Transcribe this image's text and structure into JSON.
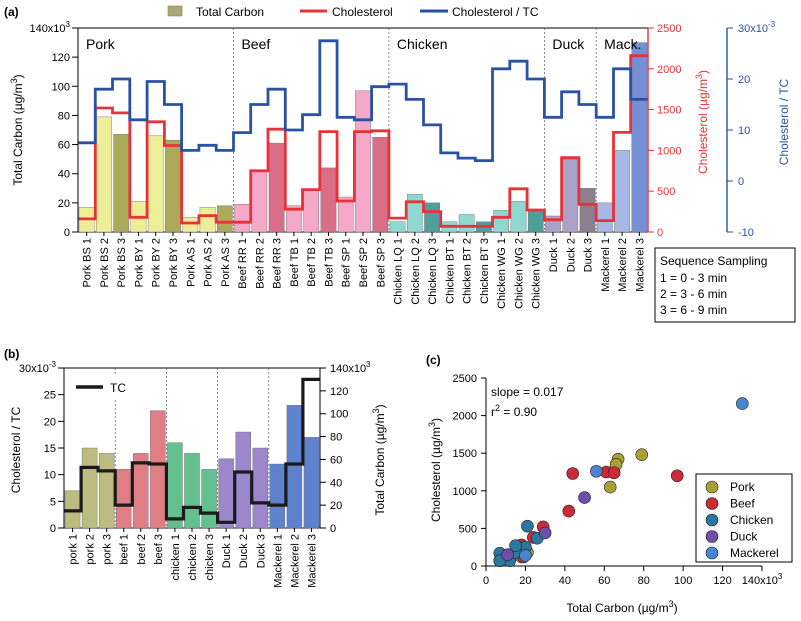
{
  "chart_data": [
    {
      "panel": "(a)",
      "type": "bar",
      "legend": {
        "total_carbon": "Total Carbon",
        "cholesterol": "Cholesterol",
        "ratio": "Cholesterol / TC"
      },
      "groups": [
        "Pork",
        "Beef",
        "Chicken",
        "Duck",
        "Mack."
      ],
      "categories": [
        "Pork BS 1",
        "Pork BS 2",
        "Pork BS 3",
        "Pork BY 1",
        "Pork BY 2",
        "Pork BY 3",
        "Pork AS 1",
        "Pork AS 2",
        "Pork AS 3",
        "Beef RR 1",
        "Beef RR 2",
        "Beef RR 3",
        "Beef TB 1",
        "Beef TB 2",
        "Beef TB 3",
        "Beef SP 1",
        "Beef SP 2",
        "Beef SP 3",
        "Chicken LQ 1",
        "Chicken LQ 2",
        "Chicken LQ 3",
        "Chicken BT 1",
        "Chicken BT 2",
        "Chicken BT 3",
        "Chicken WG 1",
        "Chicken WG 2",
        "Chicken WG 3",
        "Duck 1",
        "Duck 2",
        "Duck 3",
        "Mackerel 1",
        "Mackerel 2",
        "Mackerel 3"
      ],
      "group_of": [
        0,
        0,
        0,
        0,
        0,
        0,
        0,
        0,
        0,
        1,
        1,
        1,
        1,
        1,
        1,
        1,
        1,
        1,
        2,
        2,
        2,
        2,
        2,
        2,
        2,
        2,
        2,
        3,
        3,
        3,
        4,
        4,
        4
      ],
      "series": [
        {
          "name": "Total Carbon",
          "axis": "left",
          "values": [
            17,
            79,
            67,
            21,
            66,
            63,
            10,
            17,
            18,
            19,
            42,
            61,
            18,
            29,
            44,
            24,
            97,
            65,
            7,
            26,
            20,
            7,
            12,
            7,
            15,
            21,
            15,
            11,
            50,
            30,
            20,
            56,
            130
          ]
        },
        {
          "name": "Cholesterol",
          "axis": "right",
          "values": [
            160,
            1520,
            1460,
            180,
            1350,
            1060,
            110,
            200,
            120,
            120,
            750,
            1260,
            280,
            520,
            1230,
            380,
            1230,
            1240,
            170,
            370,
            250,
            70,
            70,
            70,
            180,
            530,
            270,
            150,
            910,
            340,
            140,
            1220,
            2160
          ]
        },
        {
          "name": "Cholesterol / TC",
          "axis": "right2",
          "values": [
            7.5,
            18,
            20,
            12,
            19.5,
            15,
            6,
            7,
            6,
            9.5,
            15,
            18,
            10,
            13,
            27.5,
            12.5,
            12,
            18.5,
            19,
            16,
            11,
            5.5,
            4.5,
            4,
            22,
            23.5,
            20,
            12.5,
            17.5,
            15,
            12.5,
            22,
            16
          ]
        }
      ],
      "y_left": {
        "label": "Total Carbon (µg/m",
        "sup": "3",
        "label_end": ")",
        "ticks": [
          "0",
          "20",
          "40",
          "60",
          "80",
          "100",
          "120",
          "140x10"
        ],
        "tick_exp": "3",
        "range": [
          0,
          140
        ]
      },
      "y_right": {
        "label": "Cholesterol (µg/m",
        "sup": "3",
        "label_end": ")",
        "ticks": [
          "0",
          "500",
          "1000",
          "1500",
          "2000",
          "2500"
        ],
        "range": [
          0,
          2500
        ]
      },
      "y_right2": {
        "label": "Cholesterol / TC",
        "ticks": [
          "-10",
          "0",
          "10",
          "20",
          "30x10"
        ],
        "tick_exp": "-3",
        "range": [
          -10,
          30
        ]
      },
      "sequence_box": {
        "title": "Sequence Sampling",
        "lines": [
          "1 = 0 - 3 min",
          "2 = 3 - 6 min",
          "3 = 6 - 9 min"
        ]
      }
    },
    {
      "panel": "(b)",
      "type": "bar",
      "legend": {
        "tc": "TC"
      },
      "categories": [
        "pork 1",
        "pork 2",
        "pork 3",
        "beef 1",
        "beef 2",
        "beef 3",
        "chicken 1",
        "chicken 2",
        "chicken 3",
        "Duck 1",
        "Duck 2",
        "Duck 3",
        "Mackerel 1",
        "Mackerel 2",
        "Mackerel 3"
      ],
      "group_of": [
        0,
        0,
        0,
        1,
        1,
        1,
        2,
        2,
        2,
        3,
        3,
        3,
        4,
        4,
        4
      ],
      "series": [
        {
          "name": "Cholesterol / TC",
          "axis": "left",
          "values": [
            7,
            15,
            14,
            11,
            14,
            22,
            16,
            14,
            11,
            13,
            18,
            15,
            12,
            23,
            17
          ]
        },
        {
          "name": "TC",
          "axis": "right",
          "values": [
            15,
            53,
            50,
            20,
            57,
            56,
            8,
            18,
            13,
            5,
            49,
            22,
            20,
            56,
            130
          ]
        }
      ],
      "y_left": {
        "label": "Cholesterol / TC",
        "ticks": [
          "0",
          "5",
          "10",
          "15",
          "20",
          "25",
          "30x10"
        ],
        "tick_exp": "-3",
        "range": [
          0,
          30
        ]
      },
      "y_right": {
        "label": "Total Carbon (µg/m",
        "sup": "3",
        "label_end": ")",
        "ticks": [
          "0",
          "20",
          "40",
          "60",
          "80",
          "100",
          "120",
          "140x10"
        ],
        "tick_exp": "3",
        "range": [
          0,
          140
        ]
      }
    },
    {
      "panel": "(c)",
      "type": "scatter",
      "annotation": {
        "slope": "slope = 0.017",
        "r2_prefix": "r",
        "r2_sup": "2",
        "r2_value": " = 0.90"
      },
      "x": {
        "label": "Total Carbon (µg/m",
        "sup": "3",
        "label_end": ")",
        "ticks": [
          "0",
          "20",
          "40",
          "60",
          "80",
          "100",
          "120",
          "140x10"
        ],
        "tick_exp": "3",
        "range": [
          0,
          140
        ]
      },
      "y": {
        "label": "Cholesterol (µg/m",
        "sup": "3",
        "label_end": ")",
        "ticks": [
          "0",
          "500",
          "1000",
          "1500",
          "2000",
          "2500"
        ],
        "range": [
          0,
          2500
        ]
      },
      "series": [
        {
          "name": "Pork",
          "points": [
            [
              17,
              160
            ],
            [
              79,
              1480
            ],
            [
              67,
              1420
            ],
            [
              21,
              180
            ],
            [
              66,
              1350
            ],
            [
              63,
              1050
            ],
            [
              10,
              110
            ],
            [
              17,
              200
            ],
            [
              18,
              120
            ]
          ]
        },
        {
          "name": "Beef",
          "points": [
            [
              19,
              120
            ],
            [
              42,
              730
            ],
            [
              61,
              1250
            ],
            [
              18,
              280
            ],
            [
              29,
              520
            ],
            [
              44,
              1230
            ],
            [
              24,
              380
            ],
            [
              97,
              1200
            ],
            [
              65,
              1240
            ]
          ]
        },
        {
          "name": "Chicken",
          "points": [
            [
              7,
              170
            ],
            [
              26,
              370
            ],
            [
              20,
              250
            ],
            [
              7,
              70
            ],
            [
              12,
              70
            ],
            [
              7,
              70
            ],
            [
              15,
              180
            ],
            [
              21,
              530
            ],
            [
              15,
              270
            ]
          ]
        },
        {
          "name": "Duck",
          "points": [
            [
              11,
              150
            ],
            [
              50,
              910
            ],
            [
              30,
              440
            ]
          ]
        },
        {
          "name": "Mackerel",
          "points": [
            [
              20,
              140
            ],
            [
              56,
              1260
            ],
            [
              130,
              2160
            ]
          ]
        }
      ]
    }
  ],
  "colors": {
    "group_light": [
      "#eeee98",
      "#f5a8c8",
      "#8ed8d0",
      "#aaa0c8",
      "#a8b8e4"
    ],
    "group_dark": [
      "#aaaa5a",
      "#da6e86",
      "#4e9e9c",
      "#8c8090",
      "#7490d4"
    ],
    "b_bars": [
      "#bcbc80",
      "#e07e86",
      "#64c08e",
      "#9c86cc",
      "#5e82ce"
    ],
    "c_points": [
      "#a8a035",
      "#cc2a36",
      "#2a78a0",
      "#6e4ea8",
      "#4a84d0"
    ],
    "cholesterol": "#e8323a",
    "ratio": "#2a52a4",
    "tc_line": "#1a1a1a",
    "tc_legend": "#a8a878"
  }
}
